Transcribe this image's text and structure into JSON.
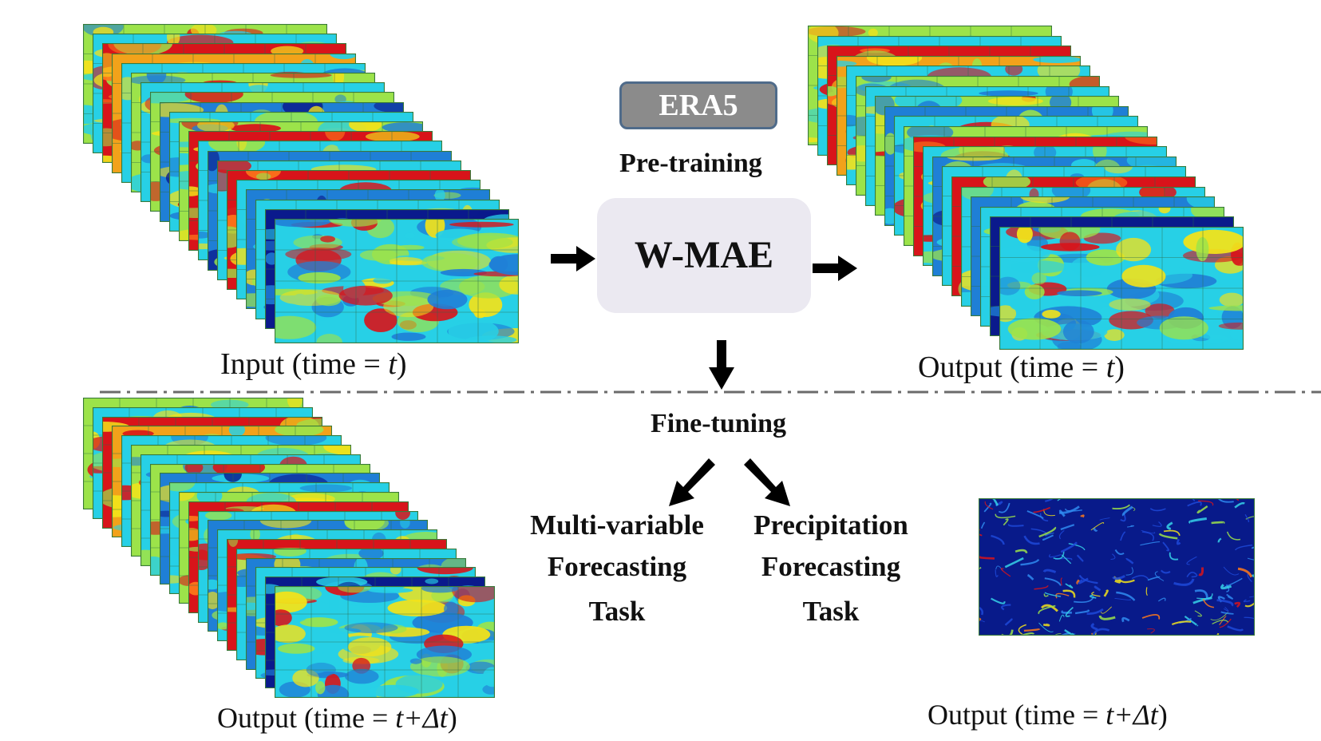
{
  "era5_label": "ERA5",
  "pretraining_label": "Pre-training",
  "model_label": "W-MAE",
  "finetuning_label": "Fine-tuning",
  "captions": {
    "input_prefix": "Input (time = ",
    "input_var": "t",
    "input_suffix": ")",
    "output_prefix": "Output (time = ",
    "output_var": "t",
    "output_suffix": ")",
    "mv_output_prefix": "Output (time = ",
    "mv_output_var": "t+Δt",
    "mv_output_suffix": ")",
    "pr_output_prefix": "Output (time = ",
    "pr_output_var": "t+Δt",
    "pr_output_suffix": ")"
  },
  "tasks": {
    "multi_variable": [
      "Multi-variable",
      "Forecasting",
      "Task"
    ],
    "precipitation": [
      "Precipitation",
      "Forecasting",
      "Task"
    ]
  },
  "colors": {
    "map_blue": "#1f7fd6",
    "map_dark": "#0a1a8c",
    "map_cyan": "#27d0e6",
    "map_green": "#9ce34a",
    "map_yellow": "#f2e21a",
    "map_red": "#d8141a",
    "box_bg": "#ebe9f1",
    "era5_bg": "#8b8b8b"
  }
}
